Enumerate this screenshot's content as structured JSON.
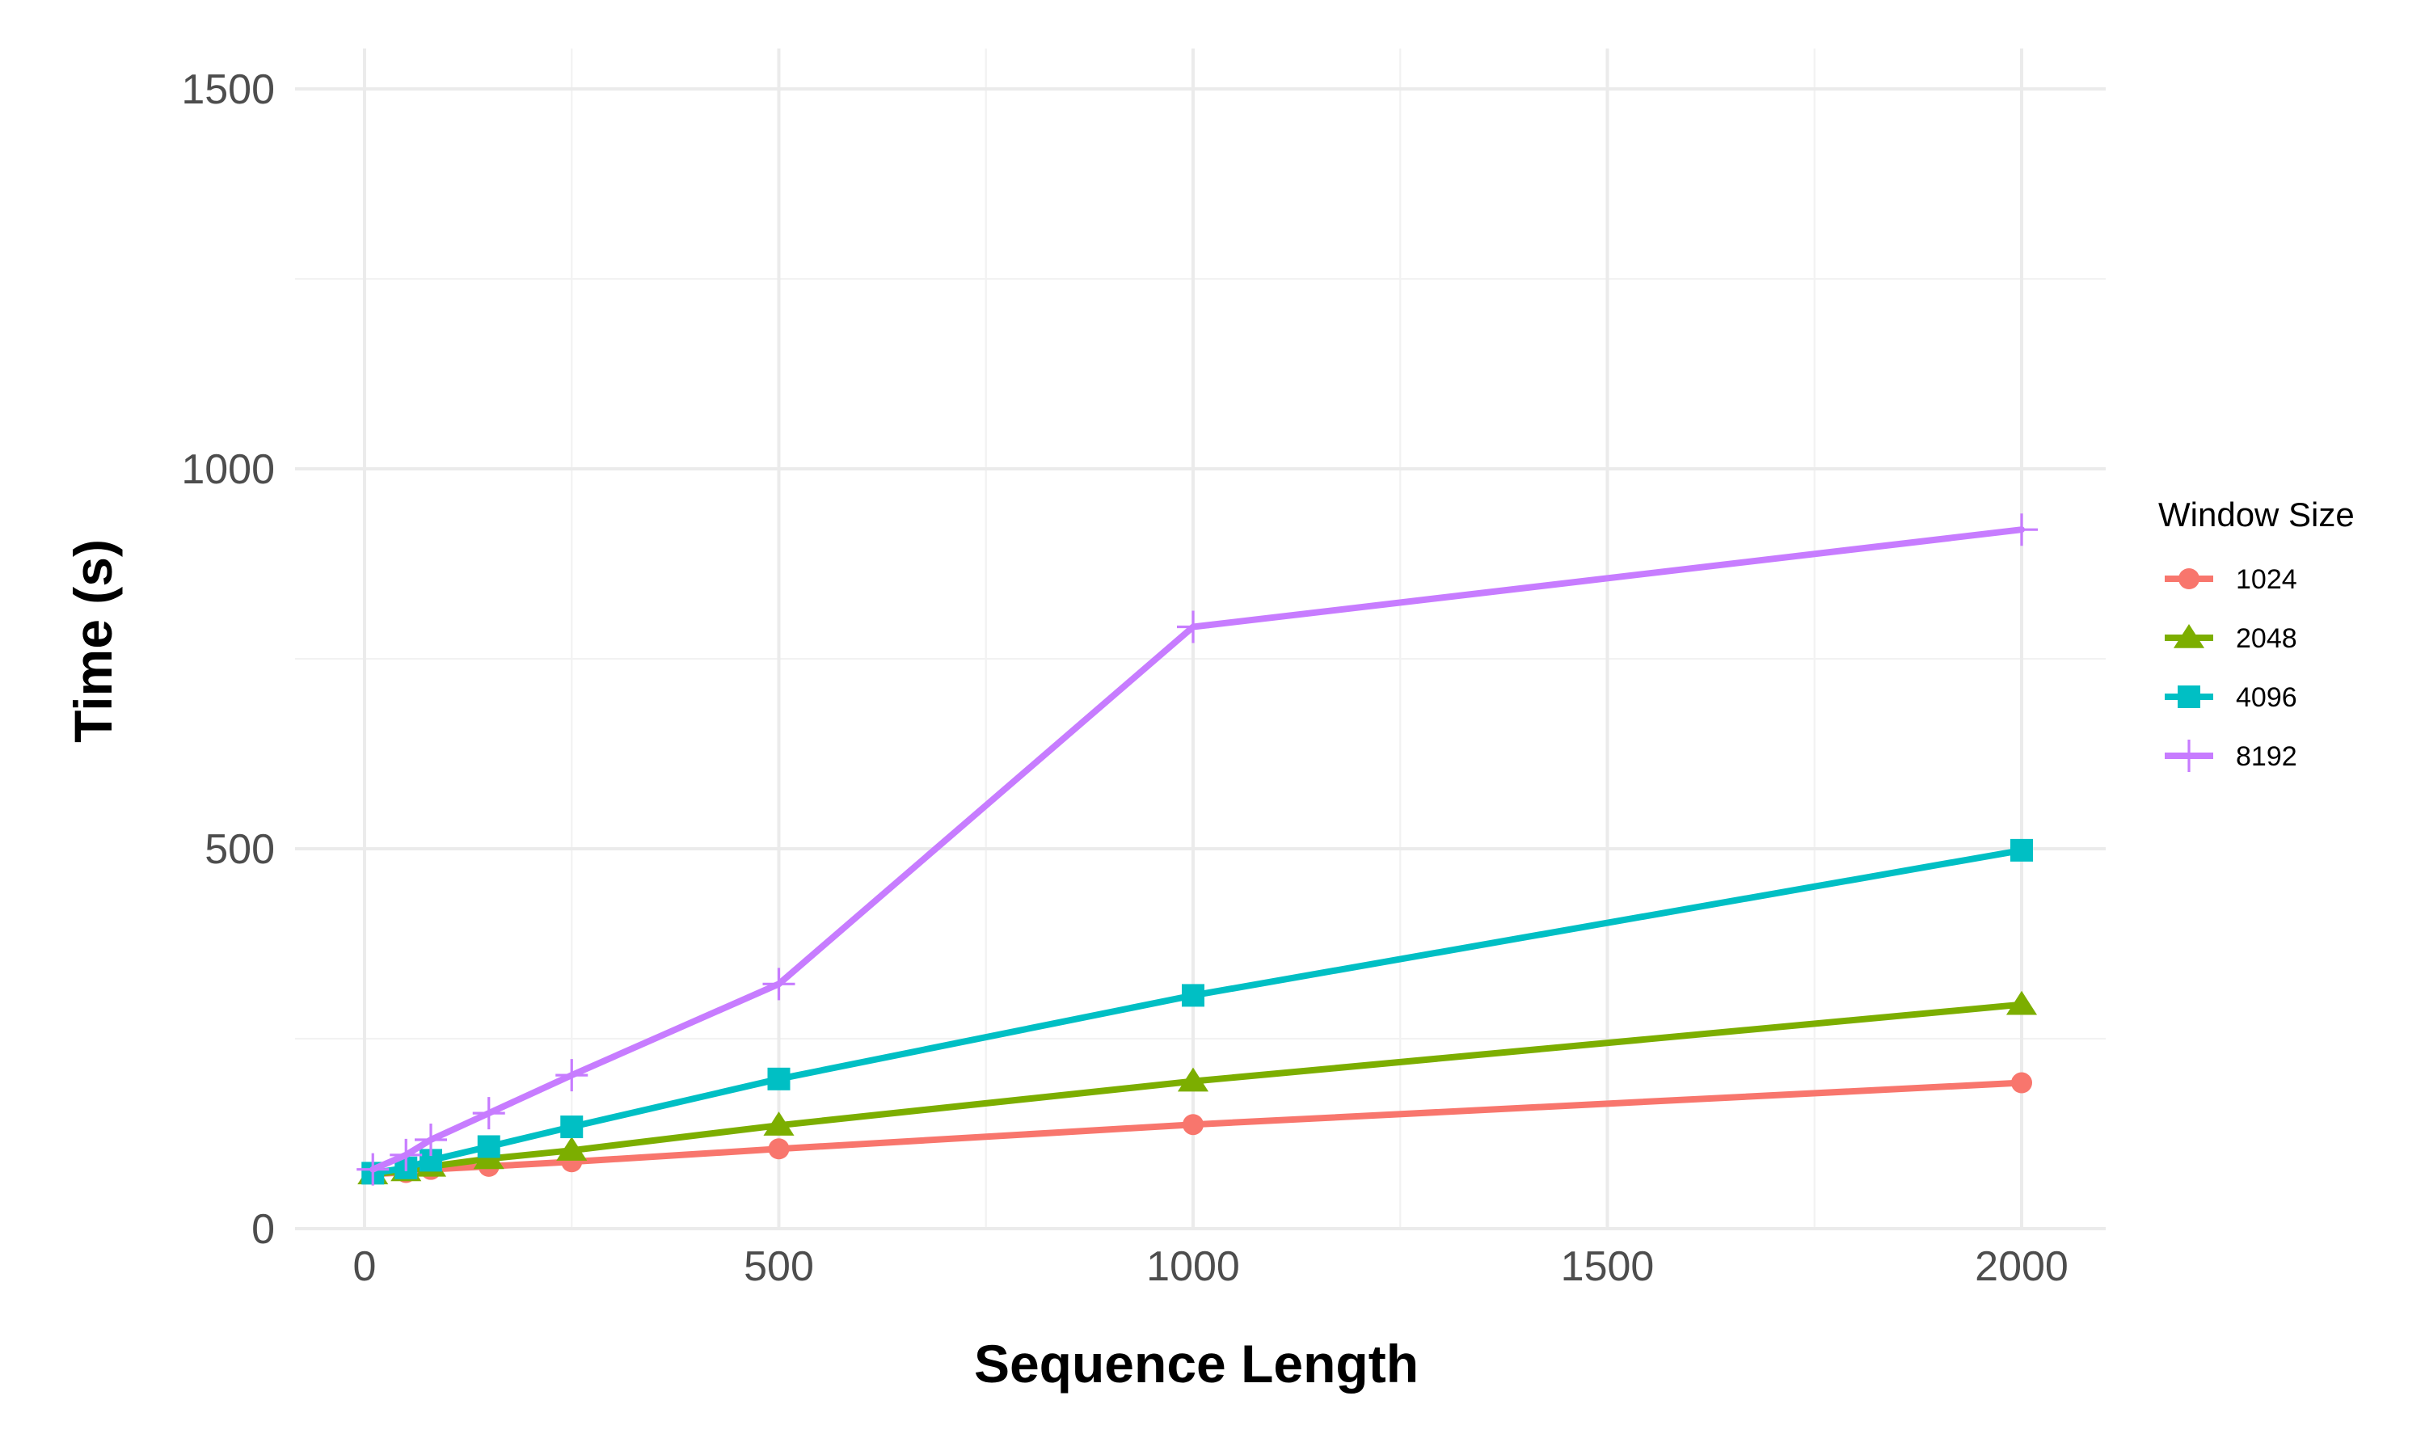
{
  "chart_data": {
    "type": "line",
    "title": "",
    "xlabel": "Sequence Length",
    "ylabel": "Time (s)",
    "xlim": [
      -90,
      2100
    ],
    "ylim": [
      0,
      1500
    ],
    "x_ticks": [
      0,
      500,
      1000,
      1500,
      2000
    ],
    "x_tick_labels": [
      "0",
      "500",
      "1000",
      "1500",
      "2000"
    ],
    "y_ticks": [
      0,
      500,
      1000,
      1500
    ],
    "y_tick_labels": [
      "0",
      "500",
      "1000",
      "1500"
    ],
    "grid": true,
    "legend": {
      "title": "Window Size",
      "placement": "right"
    },
    "series": [
      {
        "name": "1024",
        "color": "#F8766D",
        "marker": "circle",
        "x": [
          10,
          50,
          80,
          150,
          250,
          500,
          1000,
          2000
        ],
        "values": [
          72,
          74,
          78,
          82,
          88,
          105,
          137,
          192
        ]
      },
      {
        "name": "2048",
        "color": "#7CAE00",
        "marker": "triangle",
        "x": [
          10,
          50,
          80,
          150,
          250,
          500,
          1000,
          2000
        ],
        "values": [
          72,
          76,
          82,
          92,
          103,
          136,
          194,
          295
        ]
      },
      {
        "name": "4096",
        "color": "#00BFC4",
        "marker": "square",
        "x": [
          10,
          50,
          80,
          150,
          250,
          500,
          1000,
          2000
        ],
        "values": [
          73,
          80,
          90,
          108,
          134,
          197,
          307,
          498
        ]
      },
      {
        "name": "8192",
        "color": "#C77CFF",
        "marker": "plus",
        "x": [
          10,
          50,
          80,
          150,
          250,
          500,
          1000,
          2000
        ],
        "values": [
          78,
          97,
          117,
          152,
          202,
          322,
          792,
          920
        ]
      }
    ]
  }
}
